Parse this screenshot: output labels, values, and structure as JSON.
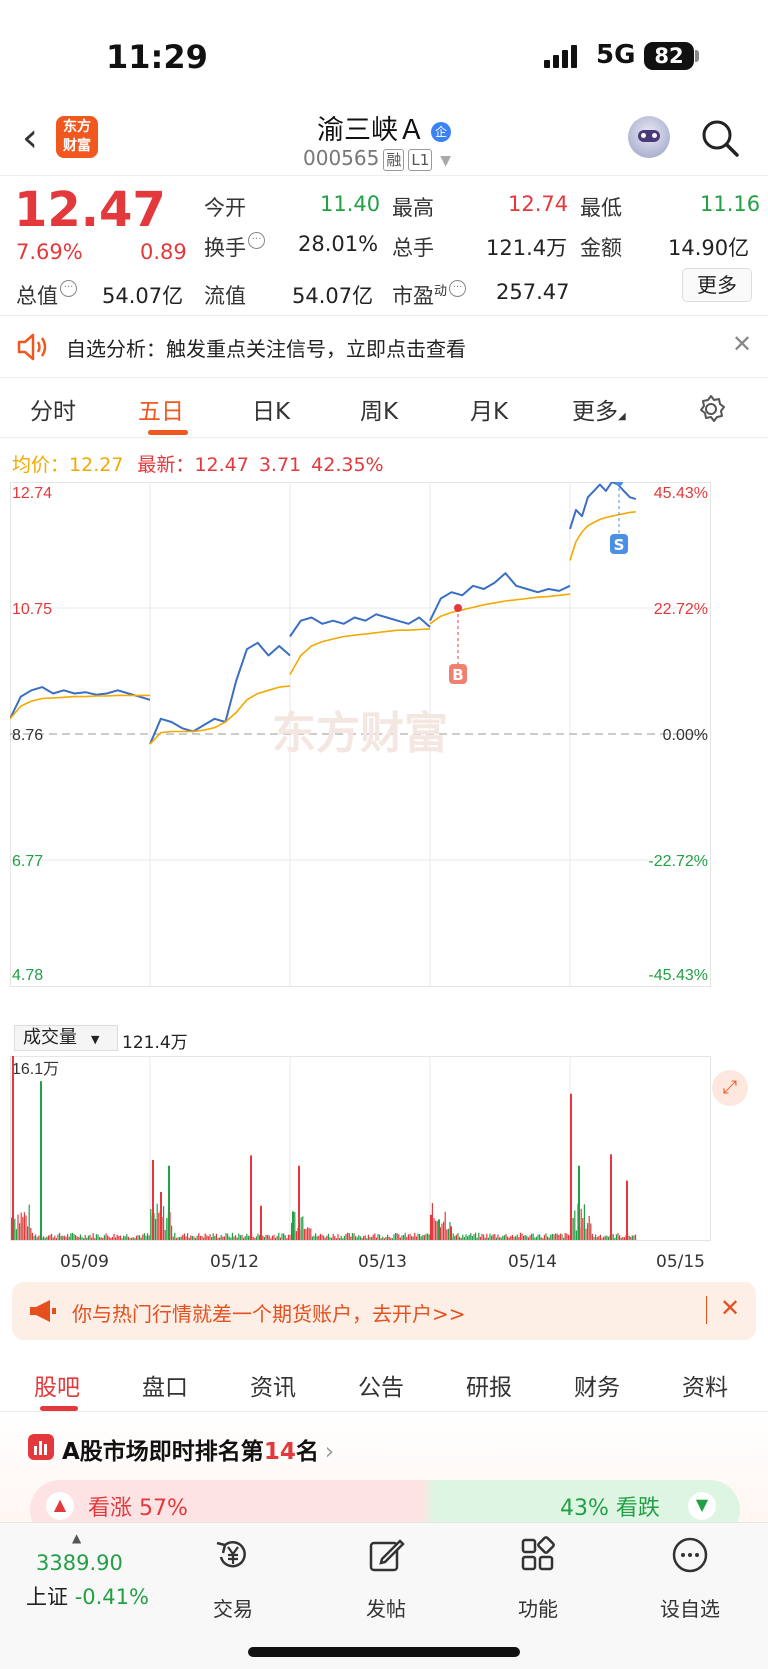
{
  "status_bar": {
    "time": "11:29",
    "network": "5G",
    "battery": "82"
  },
  "header": {
    "logo_text": "东方财富",
    "stock_name": "渝三峡Ａ",
    "badge": "企",
    "stock_code": "000565",
    "tags": [
      "融",
      "L1"
    ]
  },
  "quote": {
    "price": "12.47",
    "change_pct": "7.69%",
    "change": "0.89",
    "items": {
      "open_label": "今开",
      "open": "11.40",
      "high_label": "最高",
      "high": "12.74",
      "low_label": "最低",
      "low": "11.16",
      "turnover_label": "换手",
      "turnover": "28.01%",
      "volume_label": "总手",
      "volume": "121.4万",
      "amount_label": "金额",
      "amount": "14.90亿",
      "mcap_label": "总值",
      "mcap": "54.07亿",
      "float_label": "流值",
      "float": "54.07亿",
      "pe_label": "市盈",
      "pe_sup": "动",
      "pe": "257.47"
    },
    "more_label": "更多"
  },
  "alert": {
    "text": "自选分析：触发重点关注信号，立即点击查看"
  },
  "chart_tabs": {
    "items": [
      "分时",
      "五日",
      "日K",
      "周K",
      "月K",
      "更多"
    ],
    "active": "五日"
  },
  "legend": {
    "avg_label": "均价：",
    "avg": "12.27",
    "latest_label": "最新：",
    "latest": "12.47",
    "change": "3.71",
    "change_pct": "42.35%"
  },
  "chart_data": {
    "type": "line",
    "x_labels": [
      "05/09",
      "05/12",
      "05/13",
      "05/14",
      "05/15"
    ],
    "y_left_ticks": [
      "12.74",
      "10.75",
      "8.76",
      "6.77",
      "4.78"
    ],
    "y_right_ticks": [
      "45.43%",
      "22.72%",
      "0.00%",
      "-22.72%",
      "-45.43%"
    ],
    "ylim": [
      4.78,
      12.74
    ],
    "prev_close": 8.76,
    "watermark": "东方财富",
    "markers": [
      {
        "label": "B",
        "price": 10.75
      },
      {
        "label": "S",
        "price": 12.74
      }
    ],
    "series": [
      {
        "name": "价格",
        "color": "#3a6fc4",
        "values": [
          [
            9.0,
            9.35,
            9.45,
            9.5,
            9.4,
            9.45,
            9.4,
            9.42,
            9.38,
            9.4,
            9.45,
            9.4,
            9.35,
            9.3
          ],
          [
            8.6,
            9.0,
            8.95,
            8.85,
            8.8,
            8.9,
            9.0,
            8.95,
            9.6,
            10.1,
            10.2,
            10.0,
            10.15,
            10.0
          ],
          [
            10.3,
            10.55,
            10.6,
            10.5,
            10.55,
            10.5,
            10.6,
            10.55,
            10.65,
            10.6,
            10.55,
            10.5,
            10.6,
            10.45
          ],
          [
            10.55,
            10.9,
            11.0,
            10.95,
            11.1,
            11.05,
            11.15,
            11.3,
            11.1,
            11.05,
            11.0,
            11.05,
            11.02,
            11.1
          ],
          [
            12.0,
            12.3,
            12.2,
            12.5,
            12.6,
            12.7,
            12.6,
            12.74,
            12.7,
            12.6,
            12.5,
            12.47
          ]
        ]
      },
      {
        "name": "均价",
        "color": "#f2a900",
        "values": [
          [
            9.0,
            9.2,
            9.28,
            9.32,
            9.33,
            9.34,
            9.35,
            9.35,
            9.36,
            9.36,
            9.37,
            9.37,
            9.37,
            9.37
          ],
          [
            8.6,
            8.78,
            8.8,
            8.8,
            8.8,
            8.82,
            8.86,
            8.95,
            9.1,
            9.3,
            9.4,
            9.45,
            9.5,
            9.52
          ],
          [
            9.7,
            10.0,
            10.15,
            10.22,
            10.26,
            10.3,
            10.32,
            10.34,
            10.36,
            10.38,
            10.4,
            10.4,
            10.41,
            10.42
          ],
          [
            10.5,
            10.62,
            10.68,
            10.72,
            10.76,
            10.8,
            10.83,
            10.86,
            10.88,
            10.9,
            10.92,
            10.93,
            10.95,
            10.97
          ],
          [
            11.5,
            11.8,
            11.95,
            12.05,
            12.1,
            12.15,
            12.18,
            12.2,
            12.22,
            12.24,
            12.26,
            12.27
          ]
        ]
      }
    ]
  },
  "volume": {
    "selector_label": "成交量",
    "total": "121.4万",
    "max_label": "16.1万",
    "max": 16.1,
    "spikes": [
      16.1,
      13.9,
      7.0,
      4.2,
      6.5,
      7.4,
      3.0,
      2.5,
      6.5,
      2.2,
      1.8,
      1.2,
      12.8,
      6.5,
      7.5,
      5.2
    ]
  },
  "ad": {
    "text": "你与热门行情就差一个期货账户，去开户>>"
  },
  "info_tabs": {
    "items": [
      "股吧",
      "盘口",
      "资讯",
      "公告",
      "研报",
      "财务",
      "资料"
    ],
    "active": "股吧"
  },
  "rank": {
    "text_pre": "A股市场即时排名第",
    "rank": "14",
    "text_post": "名",
    "up_label": "看涨",
    "up_pct": "57%",
    "down_pct": "43%",
    "down_label": "看跌"
  },
  "bottom_nav": {
    "index_value": "3389.90",
    "index_name": "上证",
    "index_change": "-0.41%",
    "items": [
      "交易",
      "发帖",
      "功能",
      "设自选"
    ]
  },
  "colors": {
    "accent": "#f1581f",
    "up": "#e4393c",
    "down": "#22a045",
    "price_line": "#3a6fc4",
    "avg_line": "#f2a900"
  }
}
